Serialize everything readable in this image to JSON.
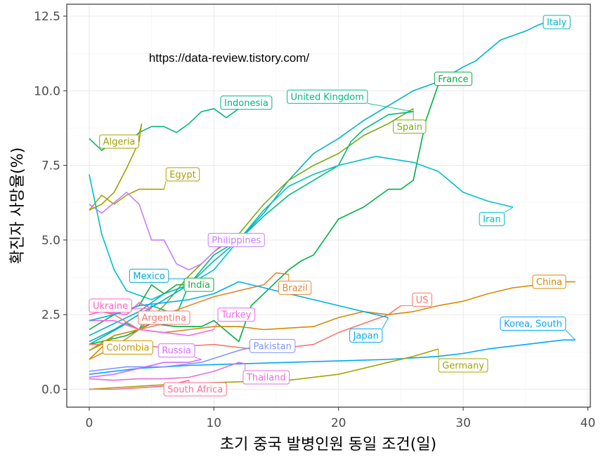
{
  "chart_data": {
    "type": "line",
    "title": "",
    "xlabel": "초기 중국 발병인원 동일 조건(일)",
    "ylabel": "확진자 사망율(%)",
    "annotation": "https://data-review.tistory.com/",
    "xlim": [
      -1.8,
      40.2
    ],
    "ylim": [
      -0.6,
      12.9
    ],
    "x_ticks": [
      0,
      10,
      20,
      30,
      40
    ],
    "y_ticks": [
      0.0,
      2.5,
      5.0,
      7.5,
      10.0,
      12.5
    ],
    "x_tick_labels": [
      "0",
      "10",
      "20",
      "30",
      "40"
    ],
    "y_tick_labels": [
      "0.0",
      "2.5",
      "5.0",
      "7.5",
      "10.0",
      "12.5"
    ],
    "grid": true,
    "legend": "none (direct labels)",
    "series": [
      {
        "name": "Italy",
        "color": "#00B4C6",
        "label_at": [
          37.5,
          12.3
        ],
        "points": [
          [
            0,
            1.8
          ],
          [
            2,
            2.2
          ],
          [
            4,
            2.6
          ],
          [
            5,
            2.9
          ],
          [
            6,
            3.2
          ],
          [
            8,
            3.5
          ],
          [
            10,
            4.3
          ],
          [
            12,
            5.0
          ],
          [
            14,
            5.9
          ],
          [
            16,
            7.0
          ],
          [
            18,
            7.9
          ],
          [
            20,
            8.4
          ],
          [
            22,
            9.0
          ],
          [
            24,
            9.5
          ],
          [
            26,
            10.0
          ],
          [
            28,
            10.3
          ],
          [
            30,
            10.8
          ],
          [
            31,
            11.0
          ],
          [
            33,
            11.7
          ],
          [
            35,
            12.0
          ],
          [
            36,
            12.2
          ],
          [
            37,
            12.35
          ]
        ]
      },
      {
        "name": "France",
        "color": "#00AE44",
        "label_at": [
          29.2,
          10.4
        ],
        "points": [
          [
            0,
            1.5
          ],
          [
            3,
            1.8
          ],
          [
            5,
            2.2
          ],
          [
            7,
            2.1
          ],
          [
            9,
            2.1
          ],
          [
            10,
            2.3
          ],
          [
            12,
            1.6
          ],
          [
            13,
            2.8
          ],
          [
            14,
            3.2
          ],
          [
            16,
            4.0
          ],
          [
            17,
            4.3
          ],
          [
            18,
            4.5
          ],
          [
            19,
            5.1
          ],
          [
            20,
            5.7
          ],
          [
            22,
            6.1
          ],
          [
            24,
            6.7
          ],
          [
            25,
            6.7
          ],
          [
            26,
            7.0
          ],
          [
            27,
            9.0
          ],
          [
            28,
            10.2
          ]
        ]
      },
      {
        "name": "Spain",
        "color": "#7BAA13",
        "label_at": [
          25.7,
          8.8
        ],
        "points": [
          [
            0,
            1.3
          ],
          [
            2,
            1.8
          ],
          [
            4,
            2.0
          ],
          [
            6,
            2.8
          ],
          [
            8,
            3.8
          ],
          [
            10,
            4.6
          ],
          [
            12,
            5.2
          ],
          [
            14,
            6.2
          ],
          [
            16,
            7.0
          ],
          [
            18,
            7.5
          ],
          [
            20,
            7.9
          ],
          [
            22,
            8.5
          ],
          [
            24,
            8.9
          ],
          [
            26,
            9.4
          ]
        ]
      },
      {
        "name": "United Kingdom",
        "color": "#00BC7A",
        "label_at": [
          19.1,
          9.8
        ],
        "points": [
          [
            0,
            1.5
          ],
          [
            3,
            2.2
          ],
          [
            4,
            2.0
          ],
          [
            5,
            2.8
          ],
          [
            7,
            2.5
          ],
          [
            8,
            3.5
          ],
          [
            10,
            4.5
          ],
          [
            12,
            5.0
          ],
          [
            14,
            5.8
          ],
          [
            16,
            6.5
          ],
          [
            18,
            7.0
          ],
          [
            20,
            7.5
          ],
          [
            21,
            8.3
          ],
          [
            22,
            8.7
          ],
          [
            24,
            9.2
          ],
          [
            26,
            9.3
          ]
        ]
      },
      {
        "name": "Indonesia",
        "color": "#00B57E",
        "label_at": [
          12.6,
          9.6
        ],
        "points": [
          [
            0,
            8.4
          ],
          [
            1,
            8.0
          ],
          [
            2,
            8.3
          ],
          [
            3,
            8.2
          ],
          [
            4,
            8.6
          ],
          [
            5,
            8.8
          ],
          [
            6,
            8.8
          ],
          [
            7,
            8.6
          ],
          [
            8,
            8.9
          ],
          [
            9,
            9.3
          ],
          [
            10,
            9.4
          ],
          [
            11,
            9.1
          ],
          [
            12,
            9.4
          ],
          [
            13,
            9.5
          ]
        ]
      },
      {
        "name": "Algeria",
        "color": "#A0A000",
        "label_at": [
          2.4,
          8.3
        ],
        "points": [
          [
            0,
            6.0
          ],
          [
            1,
            6.2
          ],
          [
            2,
            6.6
          ],
          [
            3,
            7.4
          ],
          [
            4,
            8.3
          ],
          [
            4.2,
            8.9
          ]
        ]
      },
      {
        "name": "Egypt",
        "color": "#AAA100",
        "label_at": [
          7.5,
          7.2
        ],
        "points": [
          [
            0,
            6.0
          ],
          [
            1,
            6.5
          ],
          [
            2,
            6.2
          ],
          [
            3,
            6.5
          ],
          [
            4,
            6.7
          ],
          [
            6,
            6.7
          ]
        ]
      },
      {
        "name": "Iran",
        "color": "#00C0C5",
        "label_at": [
          32.3,
          5.7
        ],
        "points": [
          [
            0,
            7.2
          ],
          [
            1,
            5.2
          ],
          [
            2,
            4.0
          ],
          [
            3,
            3.3
          ],
          [
            5,
            3.0
          ],
          [
            6,
            3.2
          ],
          [
            8,
            3.5
          ],
          [
            10,
            4.0
          ],
          [
            12,
            5.0
          ],
          [
            14,
            6.0
          ],
          [
            16,
            6.8
          ],
          [
            18,
            7.2
          ],
          [
            20,
            7.5
          ],
          [
            23,
            7.8
          ],
          [
            26,
            7.6
          ],
          [
            28,
            7.3
          ],
          [
            30,
            6.6
          ],
          [
            32,
            6.3
          ],
          [
            34,
            6.1
          ]
        ]
      },
      {
        "name": "Philippines",
        "color": "#C77CFF",
        "label_at": [
          11.8,
          5.0
        ],
        "points": [
          [
            0,
            6.2
          ],
          [
            1,
            5.9
          ],
          [
            3,
            6.6
          ],
          [
            4,
            6.2
          ],
          [
            5,
            5.0
          ],
          [
            6,
            5.0
          ],
          [
            7,
            4.2
          ],
          [
            8,
            4.0
          ],
          [
            9,
            4.2
          ],
          [
            10,
            4.6
          ],
          [
            11,
            5.0
          ]
        ]
      },
      {
        "name": "Mexico",
        "color": "#00A9DD",
        "label_at": [
          4.8,
          3.8
        ],
        "points": [
          [
            0,
            1.6
          ],
          [
            2,
            2.0
          ],
          [
            4,
            2.5
          ],
          [
            6,
            3.0
          ],
          [
            8,
            3.5
          ],
          [
            9,
            3.7
          ]
        ]
      },
      {
        "name": "India",
        "color": "#1CAA3F",
        "label_at": [
          8.8,
          3.5
        ],
        "points": [
          [
            0,
            2.0
          ],
          [
            2,
            2.5
          ],
          [
            4,
            2.8
          ],
          [
            5,
            3.5
          ],
          [
            6,
            3.2
          ],
          [
            7,
            3.5
          ],
          [
            8,
            3.5
          ]
        ]
      },
      {
        "name": "Brazil",
        "color": "#E6862F",
        "label_at": [
          16.5,
          3.4
        ],
        "points": [
          [
            0,
            1.0
          ],
          [
            2,
            1.4
          ],
          [
            4,
            2.0
          ],
          [
            6,
            2.5
          ],
          [
            8,
            2.8
          ],
          [
            10,
            3.1
          ],
          [
            12,
            3.3
          ],
          [
            14,
            3.5
          ],
          [
            15,
            3.9
          ],
          [
            16,
            3.85
          ]
        ]
      },
      {
        "name": "China",
        "color": "#D58A00",
        "label_at": [
          36.9,
          3.6
        ],
        "points": [
          [
            0,
            1.0
          ],
          [
            2,
            1.8
          ],
          [
            4,
            2.0
          ],
          [
            6,
            1.9
          ],
          [
            8,
            2.0
          ],
          [
            10,
            2.1
          ],
          [
            12,
            2.1
          ],
          [
            14,
            2.0
          ],
          [
            16,
            2.05
          ],
          [
            18,
            2.1
          ],
          [
            20,
            2.4
          ],
          [
            22,
            2.6
          ],
          [
            24,
            2.5
          ],
          [
            26,
            2.6
          ],
          [
            28,
            2.8
          ],
          [
            30,
            2.95
          ],
          [
            32,
            3.2
          ],
          [
            34,
            3.4
          ],
          [
            36,
            3.5
          ],
          [
            38,
            3.6
          ],
          [
            39,
            3.6
          ]
        ]
      },
      {
        "name": "Ukraine",
        "color": "#FF61C3",
        "label_at": [
          1.7,
          2.8
        ],
        "points": [
          [
            0,
            2.5
          ],
          [
            1,
            2.6
          ],
          [
            3,
            2.5
          ],
          [
            4,
            2.9
          ],
          [
            5,
            2.7
          ]
        ]
      },
      {
        "name": "US",
        "color": "#F8766D",
        "label_at": [
          26.7,
          3.0
        ],
        "points": [
          [
            0,
            1.5
          ],
          [
            3,
            1.5
          ],
          [
            6,
            1.4
          ],
          [
            10,
            1.5
          ],
          [
            14,
            1.3
          ],
          [
            18,
            1.5
          ],
          [
            20,
            1.9
          ],
          [
            22,
            2.2
          ],
          [
            24,
            2.5
          ],
          [
            25,
            2.8
          ]
        ]
      },
      {
        "name": "Argentina",
        "color": "#F8766D",
        "label_at": [
          6.0,
          2.4
        ],
        "points": [
          [
            0,
            2.7
          ],
          [
            2,
            2.5
          ],
          [
            4,
            2.0
          ],
          [
            6,
            2.2
          ],
          [
            8,
            2.3
          ]
        ]
      },
      {
        "name": "Turkey",
        "color": "#F564E3",
        "label_at": [
          11.8,
          2.5
        ],
        "points": [
          [
            0,
            2.3
          ],
          [
            2,
            2.3
          ],
          [
            4,
            2.0
          ],
          [
            6,
            1.9
          ],
          [
            8,
            1.8
          ],
          [
            10,
            2.0
          ]
        ]
      },
      {
        "name": "Japan",
        "color": "#00AEEC",
        "label_at": [
          22.2,
          1.8
        ],
        "points": [
          [
            0,
            2.3
          ],
          [
            2,
            2.5
          ],
          [
            4,
            2.8
          ],
          [
            6,
            2.9
          ],
          [
            8,
            3.0
          ],
          [
            10,
            3.2
          ],
          [
            12,
            3.6
          ],
          [
            14,
            3.4
          ],
          [
            16,
            3.2
          ],
          [
            18,
            3.0
          ],
          [
            20,
            2.8
          ],
          [
            22,
            2.6
          ],
          [
            24,
            2.4
          ]
        ]
      },
      {
        "name": "Korea, South",
        "color": "#00A5FF",
        "label_at": [
          35.6,
          2.2
        ],
        "points": [
          [
            0,
            0.5
          ],
          [
            4,
            0.7
          ],
          [
            8,
            0.8
          ],
          [
            12,
            0.85
          ],
          [
            16,
            0.9
          ],
          [
            20,
            0.95
          ],
          [
            24,
            1.0
          ],
          [
            28,
            1.1
          ],
          [
            30,
            1.2
          ],
          [
            32,
            1.35
          ],
          [
            34,
            1.45
          ],
          [
            36,
            1.55
          ],
          [
            38,
            1.65
          ],
          [
            39,
            1.65
          ]
        ]
      },
      {
        "name": "Pakistan",
        "color": "#7F96FF",
        "label_at": [
          14.7,
          1.45
        ],
        "points": [
          [
            0,
            0.6
          ],
          [
            3,
            0.75
          ],
          [
            6,
            0.75
          ],
          [
            9,
            0.9
          ],
          [
            12,
            1.3
          ],
          [
            14,
            1.5
          ]
        ]
      },
      {
        "name": "Colombia",
        "color": "#C59900",
        "label_at": [
          3.1,
          1.4
        ],
        "points": [
          [
            0,
            1.3
          ],
          [
            1,
            1.5
          ],
          [
            2,
            1.5
          ],
          [
            3,
            1.4
          ],
          [
            4,
            1.5
          ],
          [
            5,
            1.6
          ]
        ]
      },
      {
        "name": "Russia",
        "color": "#D46CFF",
        "label_at": [
          7.0,
          1.3
        ],
        "points": [
          [
            0,
            0.4
          ],
          [
            2,
            0.5
          ],
          [
            4,
            0.7
          ],
          [
            6,
            0.9
          ],
          [
            8,
            0.9
          ],
          [
            9,
            1.0
          ]
        ]
      },
      {
        "name": "Germany",
        "color": "#A3A500",
        "label_at": [
          30.0,
          0.8
        ],
        "points": [
          [
            0,
            0.0
          ],
          [
            4,
            0.1
          ],
          [
            8,
            0.2
          ],
          [
            12,
            0.25
          ],
          [
            16,
            0.3
          ],
          [
            20,
            0.5
          ],
          [
            22,
            0.7
          ],
          [
            24,
            0.9
          ],
          [
            26,
            1.1
          ],
          [
            28,
            1.35
          ]
        ]
      },
      {
        "name": "Thailand",
        "color": "#E36FD4",
        "label_at": [
          14.2,
          0.4
        ],
        "points": [
          [
            0,
            0.35
          ],
          [
            2,
            0.3
          ],
          [
            4,
            0.35
          ],
          [
            6,
            0.35
          ],
          [
            8,
            0.4
          ],
          [
            10,
            0.6
          ],
          [
            12,
            0.9
          ],
          [
            12.5,
            0.85
          ]
        ]
      },
      {
        "name": "South Africa",
        "color": "#FF6C91",
        "label_at": [
          8.5,
          0.0
        ],
        "points": [
          [
            0,
            0.0
          ],
          [
            2,
            0.0
          ],
          [
            4,
            0.05
          ],
          [
            6,
            0.1
          ],
          [
            7,
            0.2
          ],
          [
            8,
            0.3
          ]
        ]
      }
    ]
  }
}
